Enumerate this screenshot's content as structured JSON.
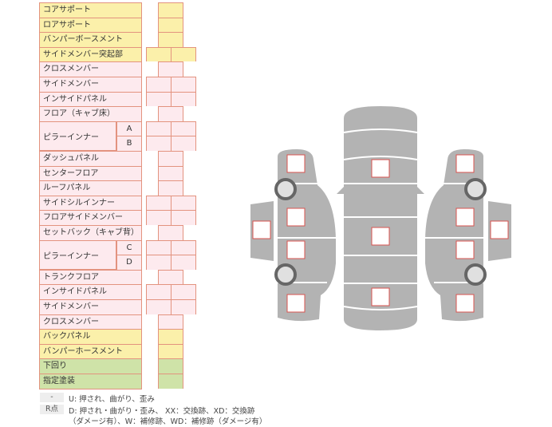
{
  "rows": [
    {
      "label": "コアサポート",
      "color": "y",
      "cells": 1
    },
    {
      "label": "ロアサポート",
      "color": "y",
      "cells": 1
    },
    {
      "label": "バンパーボースメント",
      "color": "y",
      "cells": 1
    },
    {
      "label": "サイドメンバー突起部",
      "color": "y",
      "cells": 2
    },
    {
      "label": "クロスメンバー",
      "color": "p",
      "cells": 1
    },
    {
      "label": "サイドメンバー",
      "color": "p",
      "cells": 2
    },
    {
      "label": "インサイドパネル",
      "color": "p",
      "cells": 2
    },
    {
      "label": "フロア（キャブ床）",
      "color": "p",
      "cells": 1
    },
    {
      "label": "ピラーインナー",
      "sub": "A",
      "color": "p",
      "cells": 2
    },
    {
      "label": "ピラーインナー",
      "sub": "B",
      "color": "p",
      "cells": 2
    },
    {
      "label": "ダッシュパネル",
      "color": "p",
      "cells": 1
    },
    {
      "label": "センターフロア",
      "color": "p",
      "cells": 1
    },
    {
      "label": "ルーフパネル",
      "color": "p",
      "cells": 1
    },
    {
      "label": "サイドシルインナー",
      "color": "p",
      "cells": 2
    },
    {
      "label": "フロアサイドメンバー",
      "color": "p",
      "cells": 2
    },
    {
      "label": "セットバック（キャブ背）",
      "color": "p",
      "cells": 1
    },
    {
      "label": "ピラーインナー",
      "sub": "C",
      "color": "p",
      "cells": 2
    },
    {
      "label": "ピラーインナー",
      "sub": "D",
      "color": "p",
      "cells": 2
    },
    {
      "label": "トランクフロア",
      "color": "p",
      "cells": 1
    },
    {
      "label": "インサイドパネル",
      "color": "p",
      "cells": 2
    },
    {
      "label": "サイドメンバー",
      "color": "p",
      "cells": 2
    },
    {
      "label": "クロスメンバー",
      "color": "p",
      "cells": 1
    },
    {
      "label": "バックパネル",
      "color": "y",
      "cells": 1
    },
    {
      "label": "バンパーホースメント",
      "color": "y",
      "cells": 1
    },
    {
      "label": "下回り",
      "color": "g",
      "cells": 1
    },
    {
      "label": "指定塗装",
      "color": "g",
      "cells": 1
    }
  ],
  "legend": {
    "key1": "-",
    "text1": "U: 押され、曲がり、歪み",
    "key2": "R点",
    "text2": "D: 押され・曲がり・歪み、 XX：交換跡、XD：交換跡",
    "text3": "（ダメージ有）、W：補修跡、WD：補修跡（ダメージ有）"
  },
  "colors": {
    "border": "#e3937f",
    "yellow": "#fbf0aa",
    "pink": "#fdeaee",
    "green": "#cfe3a8",
    "car": "#b3b3b3",
    "marker": "#d9534f"
  }
}
